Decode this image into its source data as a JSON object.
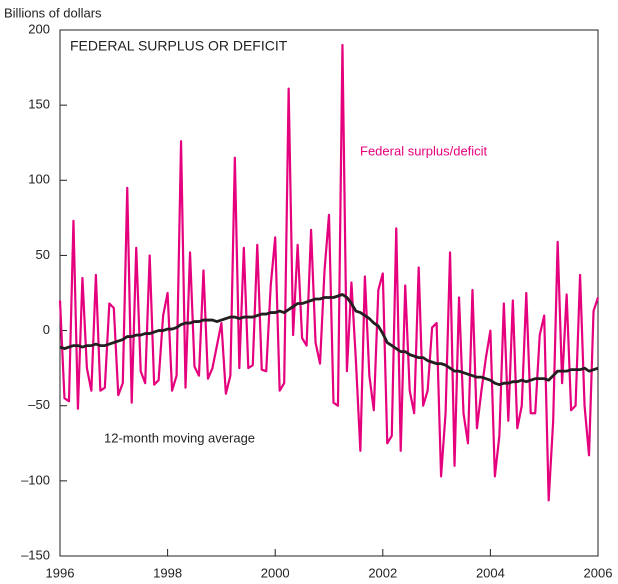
{
  "chart_data": {
    "type": "line",
    "title": "FEDERAL SURPLUS OR DEFICIT",
    "y_label": "Billions of dollars",
    "x": [
      1996,
      1996.083,
      1996.167,
      1996.25,
      1996.333,
      1996.417,
      1996.5,
      1996.583,
      1996.667,
      1996.75,
      1996.833,
      1996.917,
      1997,
      1997.083,
      1997.167,
      1997.25,
      1997.333,
      1997.417,
      1997.5,
      1997.583,
      1997.667,
      1997.75,
      1997.833,
      1997.917,
      1998,
      1998.083,
      1998.167,
      1998.25,
      1998.333,
      1998.417,
      1998.5,
      1998.583,
      1998.667,
      1998.75,
      1998.833,
      1998.917,
      1999,
      1999.083,
      1999.167,
      1999.25,
      1999.333,
      1999.417,
      1999.5,
      1999.583,
      1999.667,
      1999.75,
      1999.833,
      1999.917,
      2000,
      2000.083,
      2000.167,
      2000.25,
      2000.333,
      2000.417,
      2000.5,
      2000.583,
      2000.667,
      2000.75,
      2000.833,
      2000.917,
      2001,
      2001.083,
      2001.167,
      2001.25,
      2001.333,
      2001.417,
      2001.5,
      2001.583,
      2001.667,
      2001.75,
      2001.833,
      2001.917,
      2002,
      2002.083,
      2002.167,
      2002.25,
      2002.333,
      2002.417,
      2002.5,
      2002.583,
      2002.667,
      2002.75,
      2002.833,
      2002.917,
      2003,
      2003.083,
      2003.167,
      2003.25,
      2003.333,
      2003.417,
      2003.5,
      2003.583,
      2003.667,
      2003.75,
      2003.833,
      2003.917,
      2004,
      2004.083,
      2004.167,
      2004.25,
      2004.333,
      2004.417,
      2004.5,
      2004.583,
      2004.667,
      2004.75,
      2004.833,
      2004.917,
      2005,
      2005.083,
      2005.167,
      2005.25,
      2005.333,
      2005.417,
      2005.5,
      2005.583,
      2005.667,
      2005.75,
      2005.833,
      2005.917,
      2006
    ],
    "series": [
      {
        "name": "Federal surplus/deficit",
        "color": "#e5007d",
        "width": 2.2,
        "values": [
          20,
          -45,
          -47,
          73,
          -52,
          35,
          -25,
          -40,
          37,
          -40,
          -38,
          18,
          15,
          -43,
          -35,
          95,
          -48,
          55,
          -27,
          -35,
          50,
          -36,
          -33,
          10,
          25,
          -40,
          -30,
          126,
          -38,
          52,
          -24,
          -30,
          40,
          -32,
          -25,
          -10,
          5,
          -42,
          -30,
          115,
          -25,
          55,
          -25,
          -23,
          57,
          -26,
          -27,
          30,
          62,
          -40,
          -35,
          161,
          -3,
          57,
          -5,
          -10,
          67,
          -8,
          -22,
          40,
          77,
          -48,
          -50,
          190,
          -27,
          32,
          -20,
          -80,
          36,
          -30,
          -53,
          27,
          38,
          -75,
          -70,
          68,
          -80,
          30,
          -40,
          -55,
          42,
          -50,
          -40,
          2,
          5,
          -97,
          -55,
          52,
          -90,
          22,
          -55,
          -75,
          27,
          -65,
          -40,
          -18,
          0,
          -97,
          -70,
          18,
          -60,
          20,
          -65,
          -50,
          25,
          -55,
          -55,
          -3,
          10,
          -113,
          -60,
          59,
          -35,
          24,
          -53,
          -50,
          37,
          -50,
          -83,
          13,
          22
        ]
      },
      {
        "name": "12-month moving average",
        "color": "#231f20",
        "width": 2.8,
        "values": [
          -11,
          -12,
          -11,
          -10,
          -10,
          -11,
          -10,
          -10,
          -9,
          -10,
          -10,
          -9,
          -8,
          -7,
          -6,
          -4,
          -4,
          -3,
          -3,
          -2,
          -2,
          -1,
          0,
          0,
          1,
          1,
          2,
          4,
          5,
          5,
          6,
          6,
          7,
          7,
          7,
          6,
          7,
          8,
          9,
          9,
          8,
          9,
          9,
          9,
          10,
          11,
          11,
          12,
          12,
          13,
          12,
          14,
          16,
          18,
          18,
          19,
          20,
          21,
          21,
          22,
          22,
          22,
          23,
          24,
          22,
          18,
          13,
          12,
          10,
          8,
          5,
          3,
          -2,
          -8,
          -10,
          -12,
          -14,
          -14,
          -16,
          -17,
          -18,
          -18,
          -20,
          -21,
          -22,
          -22,
          -23,
          -25,
          -27,
          -27,
          -28,
          -29,
          -30,
          -31,
          -31,
          -32,
          -33,
          -35,
          -36,
          -35,
          -35,
          -34,
          -34,
          -33,
          -34,
          -33,
          -32,
          -32,
          -32,
          -33,
          -30,
          -27,
          -27,
          -27,
          -26,
          -26,
          -26,
          -25,
          -27,
          -26,
          -25
        ]
      }
    ],
    "xlim": [
      1996,
      2006
    ],
    "xticks": [
      1996,
      1998,
      2000,
      2002,
      2004,
      2006
    ],
    "ylim": [
      -150,
      200
    ],
    "yticks": [
      {
        "value": -150,
        "label": "–150"
      },
      {
        "value": -100,
        "label": "–100"
      },
      {
        "value": -50,
        "label": "–50"
      },
      0,
      50,
      100,
      150,
      200
    ],
    "grid": false
  }
}
